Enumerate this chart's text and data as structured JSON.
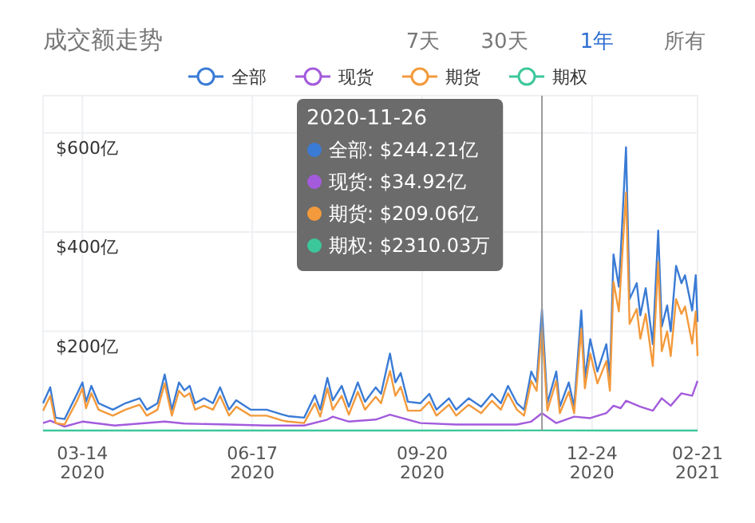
{
  "chart_data": {
    "type": "line",
    "title": "成交额走势",
    "annotations": [
      "7天",
      "30天",
      "1年",
      "所有",
      "2020-11-26",
      "全部: $244.21亿",
      "现货: $34.92亿",
      "期货: $209.06亿",
      "期权: $2310.03万"
    ],
    "xlim": [
      "2020-02-21",
      "2021-02-21"
    ],
    "xticks": [
      {
        "value": "2020-03-14",
        "label": "03-14\n2020"
      },
      {
        "value": "2020-06-17",
        "label": "06-17\n2020"
      },
      {
        "value": "2020-09-20",
        "label": "09-20\n2020"
      },
      {
        "value": "2020-12-24",
        "label": "12-24\n2020"
      },
      {
        "value": "2021-02-21",
        "label": "02-21\n2021"
      }
    ],
    "ylim": [
      0,
      675
    ],
    "yticks": [
      {
        "value": 200,
        "label": "$200亿"
      },
      {
        "value": 400,
        "label": "$400亿"
      },
      {
        "value": 600,
        "label": "$600亿"
      }
    ],
    "grid": true,
    "legend": "top",
    "marker": "none",
    "line_style": "solid",
    "ref_lines": [
      {
        "axis": "x",
        "value": "2020-11-26",
        "color": "#999999"
      }
    ],
    "series": [
      {
        "name": "全部",
        "color": "#3a7bd5",
        "x": [
          "2020-02-21",
          "2020-02-25",
          "2020-02-28",
          "2020-03-04",
          "2020-03-11",
          "2020-03-14",
          "2020-03-16",
          "2020-03-19",
          "2020-03-23",
          "2020-03-31",
          "2020-04-07",
          "2020-04-15",
          "2020-04-19",
          "2020-04-25",
          "2020-04-29",
          "2020-05-03",
          "2020-05-07",
          "2020-05-10",
          "2020-05-13",
          "2020-05-16",
          "2020-05-21",
          "2020-05-26",
          "2020-05-30",
          "2020-06-04",
          "2020-06-08",
          "2020-06-16",
          "2020-06-25",
          "2020-07-04",
          "2020-07-07",
          "2020-07-16",
          "2020-07-22",
          "2020-07-25",
          "2020-07-29",
          "2020-08-01",
          "2020-08-06",
          "2020-08-10",
          "2020-08-15",
          "2020-08-19",
          "2020-08-25",
          "2020-08-28",
          "2020-09-02",
          "2020-09-05",
          "2020-09-08",
          "2020-09-12",
          "2020-09-19",
          "2020-09-24",
          "2020-09-28",
          "2020-10-05",
          "2020-10-09",
          "2020-10-16",
          "2020-10-23",
          "2020-10-29",
          "2020-11-03",
          "2020-11-07",
          "2020-11-12",
          "2020-11-16",
          "2020-11-20",
          "2020-11-23",
          "2020-11-26",
          "2020-11-29",
          "2020-12-04",
          "2020-12-06",
          "2020-12-11",
          "2020-12-14",
          "2020-12-18",
          "2020-12-20",
          "2020-12-23",
          "2020-12-27",
          "2021-01-01",
          "2021-01-03",
          "2021-01-05",
          "2021-01-08",
          "2021-01-09",
          "2021-01-12",
          "2021-01-14",
          "2021-01-18",
          "2021-01-20",
          "2021-01-23",
          "2021-01-27",
          "2021-01-30",
          "2021-02-01",
          "2021-02-04",
          "2021-02-06",
          "2021-02-09",
          "2021-02-12",
          "2021-02-14",
          "2021-02-18",
          "2021-02-20",
          "2021-02-21"
        ],
        "values": [
          55,
          87,
          26,
          23,
          74,
          97,
          58,
          90,
          55,
          42,
          55,
          65,
          42,
          55,
          113,
          42,
          97,
          81,
          90,
          55,
          65,
          55,
          87,
          42,
          61,
          42,
          42,
          32,
          29,
          26,
          71,
          42,
          106,
          61,
          90,
          48,
          97,
          58,
          87,
          74,
          155,
          97,
          116,
          58,
          55,
          74,
          42,
          65,
          42,
          65,
          48,
          74,
          55,
          90,
          55,
          42,
          119,
          97,
          244.21,
          55,
          119,
          48,
          97,
          48,
          242,
          106,
          184,
          119,
          174,
          106,
          355,
          290,
          355,
          571,
          265,
          297,
          232,
          287,
          174,
          403,
          210,
          252,
          200,
          332,
          297,
          313,
          242,
          313,
          219
        ]
      },
      {
        "name": "现货",
        "color": "#a35bdc",
        "x": [
          "2020-02-21",
          "2020-02-25",
          "2020-03-04",
          "2020-03-14",
          "2020-04-01",
          "2020-04-29",
          "2020-05-10",
          "2020-06-04",
          "2020-06-25",
          "2020-07-16",
          "2020-07-29",
          "2020-08-01",
          "2020-08-10",
          "2020-08-25",
          "2020-09-02",
          "2020-09-08",
          "2020-09-19",
          "2020-10-09",
          "2020-10-29",
          "2020-11-12",
          "2020-11-20",
          "2020-11-26",
          "2020-12-04",
          "2020-12-14",
          "2020-12-23",
          "2021-01-01",
          "2021-01-05",
          "2021-01-09",
          "2021-01-12",
          "2021-01-20",
          "2021-01-27",
          "2021-02-01",
          "2021-02-06",
          "2021-02-12",
          "2021-02-18",
          "2021-02-21"
        ],
        "values": [
          15,
          20,
          8,
          18,
          10,
          18,
          14,
          12,
          10,
          10,
          22,
          28,
          18,
          22,
          32,
          26,
          15,
          12,
          12,
          12,
          18,
          34.92,
          15,
          28,
          25,
          35,
          50,
          45,
          60,
          48,
          40,
          65,
          50,
          75,
          70,
          100
        ]
      },
      {
        "name": "期货",
        "color": "#f39a3c",
        "x": [
          "2020-02-21",
          "2020-02-25",
          "2020-02-28",
          "2020-03-04",
          "2020-03-11",
          "2020-03-14",
          "2020-03-16",
          "2020-03-19",
          "2020-03-23",
          "2020-03-31",
          "2020-04-07",
          "2020-04-15",
          "2020-04-19",
          "2020-04-25",
          "2020-04-29",
          "2020-05-03",
          "2020-05-07",
          "2020-05-10",
          "2020-05-13",
          "2020-05-16",
          "2020-05-21",
          "2020-05-26",
          "2020-05-30",
          "2020-06-04",
          "2020-06-08",
          "2020-06-16",
          "2020-06-25",
          "2020-07-04",
          "2020-07-07",
          "2020-07-16",
          "2020-07-22",
          "2020-07-25",
          "2020-07-29",
          "2020-08-01",
          "2020-08-06",
          "2020-08-10",
          "2020-08-15",
          "2020-08-19",
          "2020-08-25",
          "2020-08-28",
          "2020-09-02",
          "2020-09-05",
          "2020-09-08",
          "2020-09-12",
          "2020-09-19",
          "2020-09-24",
          "2020-09-28",
          "2020-10-05",
          "2020-10-09",
          "2020-10-16",
          "2020-10-23",
          "2020-10-29",
          "2020-11-03",
          "2020-11-07",
          "2020-11-12",
          "2020-11-16",
          "2020-11-20",
          "2020-11-23",
          "2020-11-26",
          "2020-11-29",
          "2020-12-04",
          "2020-12-06",
          "2020-12-11",
          "2020-12-14",
          "2020-12-18",
          "2020-12-20",
          "2020-12-23",
          "2020-12-27",
          "2021-01-01",
          "2021-01-03",
          "2021-01-05",
          "2021-01-08",
          "2021-01-09",
          "2021-01-12",
          "2021-01-14",
          "2021-01-18",
          "2021-01-20",
          "2021-01-23",
          "2021-01-27",
          "2021-01-30",
          "2021-02-01",
          "2021-02-04",
          "2021-02-06",
          "2021-02-09",
          "2021-02-12",
          "2021-02-14",
          "2021-02-18",
          "2021-02-20",
          "2021-02-21"
        ],
        "values": [
          40,
          70,
          15,
          12,
          60,
          85,
          45,
          75,
          42,
          30,
          42,
          52,
          30,
          42,
          95,
          30,
          80,
          68,
          75,
          42,
          50,
          42,
          70,
          30,
          48,
          30,
          30,
          20,
          18,
          15,
          55,
          28,
          85,
          42,
          70,
          32,
          78,
          42,
          68,
          55,
          120,
          70,
          88,
          40,
          40,
          58,
          30,
          52,
          30,
          52,
          35,
          60,
          42,
          75,
          42,
          30,
          100,
          80,
          209.06,
          40,
          100,
          35,
          78,
          35,
          205,
          85,
          155,
          95,
          140,
          80,
          300,
          240,
          300,
          480,
          215,
          245,
          185,
          235,
          130,
          340,
          160,
          200,
          150,
          265,
          235,
          250,
          175,
          240,
          150
        ]
      },
      {
        "name": "期权",
        "color": "#3cc79b",
        "x": [
          "2020-02-21",
          "2020-05-01",
          "2020-08-01",
          "2020-11-26",
          "2021-01-12",
          "2021-02-21"
        ],
        "values": [
          0,
          0,
          0,
          0.231,
          0,
          0
        ]
      }
    ]
  }
}
